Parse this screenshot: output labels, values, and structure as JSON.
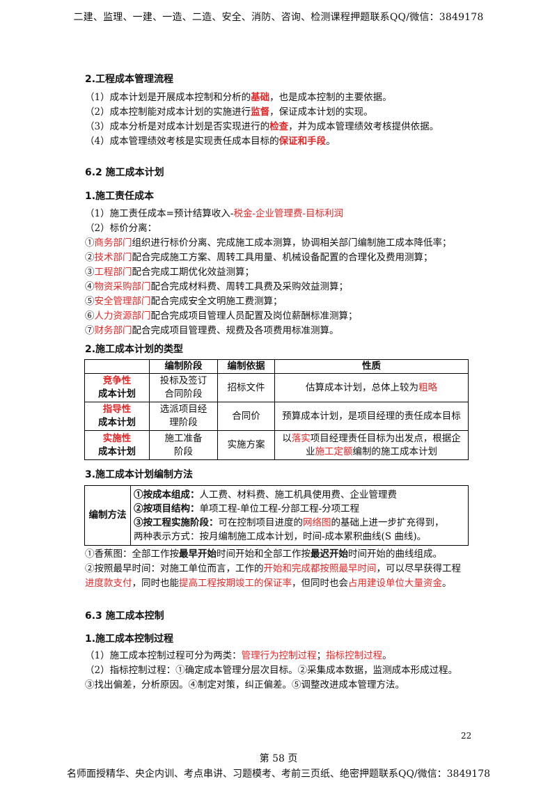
{
  "header": "二建、监理、一建、一造、二造、安全、消防、咨询、检测课程押题联系QQ/微信：3849178",
  "footer": "名师面授精华、央企内训、考点串讲、习题模考、考前三页纸、绝密押题联系QQ/微信：3849178",
  "page_label": "第 58 页",
  "page_number": "22",
  "s2": {
    "title": "2.工程成本管理流程",
    "l1a": "（1）成本计划是开展成本控制和分析的",
    "l1b": "基础",
    "l1c": "，也是成本控制的主要依据。",
    "l2a": "（2）成本控制能对成本计划的实施进行",
    "l2b": "监督",
    "l2c": "，保证成本计划的实现。",
    "l3a": "（3）成本分析是对成本计划是否实现进行的",
    "l3b": "检查",
    "l3c": "，并为成本管理绩效考核提供依据。",
    "l4a": "（4）成本管理绩效考核是实现责任成本目标的",
    "l4b": "保证和手段",
    "l4c": "。"
  },
  "sec62": {
    "title": "6.2 施工成本计划"
  },
  "resp": {
    "title": "1.施工责任成本",
    "l1a": "（1）施工责任成本=预计结算收入-",
    "l1b": "税金-企业管理费-目标利润",
    "l2": "（2）标价分离：",
    "items": [
      {
        "n": "①",
        "r": "商务部门",
        "t": "组织进行标价分离、完成施工成本测算，协调相关部门编制施工成本降低率；"
      },
      {
        "n": "②",
        "r": "技术部门",
        "t": "配合完成施工方案、周转工具用量、机械设备配置的合理化及费用测算；"
      },
      {
        "n": "③",
        "r": "工程部门",
        "t": "配合完成工期优化效益测算；"
      },
      {
        "n": "④",
        "r": "物资采购部门",
        "t": "配合完成材料费、周转工具费及采购效益测算；"
      },
      {
        "n": "⑤",
        "r": "安全管理部门",
        "t": "配合完成安全文明施工费测算；"
      },
      {
        "n": "⑥",
        "r": "人力资源部门",
        "t": "配合完成项目管理人员配置及岗位薪酬标准测算；"
      },
      {
        "n": "⑦",
        "r": "财务部门",
        "t": "配合完成项目管理费、规费及各项费用标准测算。"
      }
    ]
  },
  "types": {
    "title": "2.施工成本计划的类型",
    "headers": [
      "",
      "编制阶段",
      "编制依据",
      "性质"
    ],
    "rows": [
      {
        "n1": "竞争性",
        "n2": "成本计划",
        "s1": "投标及签订",
        "s2": "合同阶段",
        "basis": "招标文件",
        "pa": "估算成本计划，总体上较为",
        "pb": "粗略"
      },
      {
        "n1": "指导性",
        "n2": "成本计划",
        "s1": "选派项目经",
        "s2": "理阶段",
        "basis": "合同价",
        "pa": "预算成本计划，是项目经理的责任成本目标",
        "pb": ""
      },
      {
        "n1": "实施性",
        "n2": "成本计划",
        "s1": "施工准备",
        "s2": "阶段",
        "basis": "实施方案",
        "pa": "以",
        "pb": "落实",
        "pc": "项目经理责任目标为出发点，根据企",
        "pd": "业",
        "pe": "施工定额",
        "pf": "编制的施工成本计划"
      }
    ]
  },
  "methods": {
    "title": "3.施工成本计划编制方法",
    "label": "编制方法",
    "m1a": "①按成本组成：",
    "m1b": "人工费、材料费、施工机具使用费、企业管理费",
    "m2a": "②按项目结构：",
    "m2b": "单项工程-单位工程-分部工程-分项工程",
    "m3a": "③按工程实施阶段：",
    "m3b": "可在控制项目进度的",
    "m3c": "网络图",
    "m3d": "的基础上进一步扩充得到，",
    "m3e": "两种表示方式：按月编制施工成本计划，时间-成本累积曲线(S 曲线)。",
    "n1a": "①香蕉图：全部工作按",
    "n1b": "最早开始",
    "n1c": "时间开始和全部工作按",
    "n1d": "最迟开始",
    "n1e": "时间开始的曲线组成。",
    "n2a": "②按照最早时间：对施工单位而言，工作的",
    "n2b": "开始和完成都按照最早时间",
    "n2c": "，可以尽早获得工程",
    "n3a": "进度款支付",
    "n3b": "，同时也能",
    "n3c": "提高工程按期竣工的保证率",
    "n3d": "，但同时也会",
    "n3e": "占用建设单位大量资金",
    "n3f": "。"
  },
  "sec63": {
    "title": "6.3 施工成本控制"
  },
  "ctrl": {
    "title": "1.施工成本控制过程",
    "l1a": "（1）施工成本控制过程可分为两类：",
    "l1b": "管理行为控制过程",
    "l1c": "；",
    "l1d": "指标控制过程",
    "l1e": "。",
    "l2": "（2）指标控制过程：①确定成本管理分层次目标。②采集成本数据，监测成本形成过程。",
    "l3": "③找出偏差，分析原因。④制定对策，纠正偏差。⑤调整改进成本管理方法。"
  }
}
